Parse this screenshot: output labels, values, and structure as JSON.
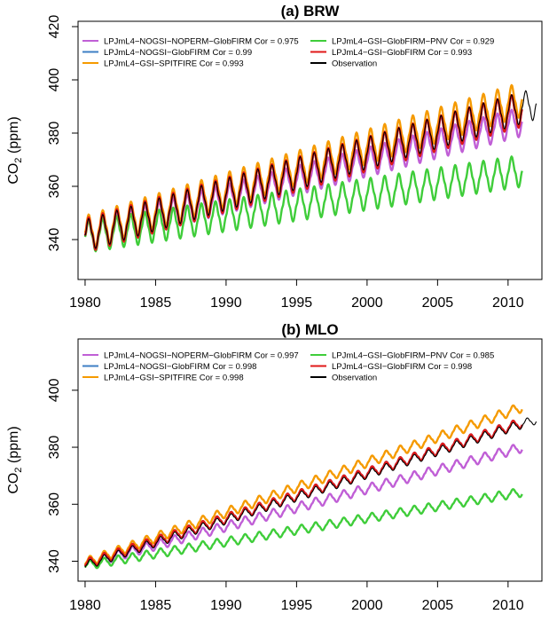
{
  "chart_data": [
    {
      "type": "line",
      "title": "(a) BRW",
      "ylabel": "CO2 (ppm)",
      "xlabel": "",
      "xlim": [
        1979.5,
        2012.4
      ],
      "ylim": [
        325,
        422
      ],
      "xticks": [
        1980,
        1985,
        1990,
        1995,
        2000,
        2005,
        2010
      ],
      "yticks": [
        340,
        360,
        380,
        400,
        420
      ],
      "grid": false,
      "legend_position": "top-left",
      "series": [
        {
          "name": "LPJmL4−NOGSI−NOPERM−GlobFIRM Cor = 0.975",
          "color": "#c05fd6",
          "x_range": [
            1980,
            2011
          ],
          "baseline": 341.5,
          "trend_per_year": 1.38,
          "amplitude": 11,
          "phase": 0.25
        },
        {
          "name": "LPJmL4−NOGSI−GlobFIRM Cor = 0.99",
          "color": "#3e7fc5",
          "x_range": [
            1980,
            2011
          ],
          "baseline": 341.5,
          "trend_per_year": 1.53,
          "amplitude": 13,
          "phase": 0.25
        },
        {
          "name": "LPJmL4−GSI−SPITFIRE Cor = 0.993",
          "color": "#f59a00",
          "x_range": [
            1980,
            2011
          ],
          "baseline": 342.5,
          "trend_per_year": 1.62,
          "amplitude": 13,
          "phase": 0.25
        },
        {
          "name": "LPJmL4−GSI−GlobFIRM−PNV Cor = 0.929",
          "color": "#3fcd3a",
          "x_range": [
            1980,
            2011
          ],
          "baseline": 341,
          "trend_per_year": 0.8,
          "amplitude": 12,
          "phase": 0.25
        },
        {
          "name": "LPJmL4−GSI−GlobFIRM Cor = 0.993",
          "color": "#e01818",
          "x_range": [
            1980,
            2011
          ],
          "baseline": 341.5,
          "trend_per_year": 1.53,
          "amplitude": 13,
          "phase": 0.25
        },
        {
          "name": "Observation",
          "color": "#000000",
          "x_range": [
            1980,
            2012
          ],
          "baseline": 341.5,
          "trend_per_year": 1.55,
          "amplitude": 12,
          "phase": 0.25
        }
      ]
    },
    {
      "type": "line",
      "title": "(b) MLO",
      "ylabel": "CO2 (ppm)",
      "xlabel": "",
      "xlim": [
        1979.5,
        2012.4
      ],
      "ylim": [
        333,
        418
      ],
      "xticks": [
        1980,
        1985,
        1990,
        1995,
        2000,
        2005,
        2010
      ],
      "yticks": [
        340,
        360,
        380,
        400
      ],
      "grid": false,
      "legend_position": "top-left",
      "series": [
        {
          "name": "LPJmL4−NOGSI−NOPERM−GlobFIRM Cor = 0.997",
          "color": "#c05fd6",
          "x_range": [
            1980,
            2011
          ],
          "baseline": 339,
          "trend_per_year": 1.32,
          "amplitude": 3.5,
          "phase": 0.35
        },
        {
          "name": "LPJmL4−NOGSI−GlobFIRM Cor = 0.998",
          "color": "#3e7fc5",
          "x_range": [
            1980,
            2011
          ],
          "baseline": 339,
          "trend_per_year": 1.6,
          "amplitude": 3.5,
          "phase": 0.35
        },
        {
          "name": "LPJmL4−GSI−SPITFIRE Cor = 0.998",
          "color": "#f59a00",
          "x_range": [
            1980,
            2011
          ],
          "baseline": 339.5,
          "trend_per_year": 1.76,
          "amplitude": 3.5,
          "phase": 0.35
        },
        {
          "name": "LPJmL4−GSI−GlobFIRM−PNV Cor = 0.985",
          "color": "#3fcd3a",
          "x_range": [
            1980,
            2011
          ],
          "baseline": 338.5,
          "trend_per_year": 0.83,
          "amplitude": 3.2,
          "phase": 0.35
        },
        {
          "name": "LPJmL4−GSI−GlobFIRM Cor = 0.998",
          "color": "#e01818",
          "x_range": [
            1980,
            2011
          ],
          "baseline": 339,
          "trend_per_year": 1.6,
          "amplitude": 3.5,
          "phase": 0.35
        },
        {
          "name": "Observation",
          "color": "#000000",
          "x_range": [
            1980,
            2012
          ],
          "baseline": 338.5,
          "trend_per_year": 1.6,
          "amplitude": 3.2,
          "phase": 0.35
        }
      ]
    }
  ]
}
